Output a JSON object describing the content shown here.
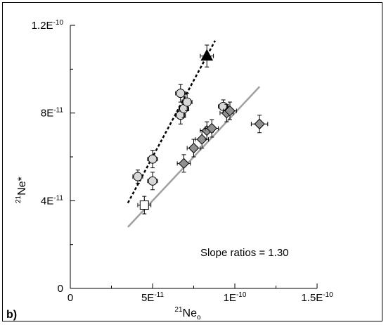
{
  "chart_data": {
    "type": "scatter",
    "panel_label": "b)",
    "xlabel": {
      "sup": "21",
      "base": "Ne",
      "sub": "o"
    },
    "ylabel": {
      "sup": "21",
      "base": "Ne*"
    },
    "xlim": [
      0,
      1.5e-10
    ],
    "ylim": [
      0,
      1.2e-10
    ],
    "x_ticks": [
      {
        "value": 0,
        "mant": "0",
        "exp": ""
      },
      {
        "value": 5e-11,
        "mant": "5E",
        "exp": "-11"
      },
      {
        "value": 1e-10,
        "mant": "1E",
        "exp": "-10"
      },
      {
        "value": 1.5e-10,
        "mant": "1.5E",
        "exp": "-10"
      }
    ],
    "y_ticks": [
      {
        "value": 0,
        "mant": "0",
        "exp": ""
      },
      {
        "value": 4e-11,
        "mant": "4E",
        "exp": "-11"
      },
      {
        "value": 8e-11,
        "mant": "8E",
        "exp": "-11"
      },
      {
        "value": 1.2e-10,
        "mant": "1.2E",
        "exp": "-10"
      }
    ],
    "annotation": "Slope ratios = 1.30",
    "series": [
      {
        "marker": "circle",
        "fill": "#d8d8d8",
        "points": [
          {
            "x": 4.1e-11,
            "y": 5.1e-11,
            "xerr": 3e-12,
            "yerr": 3e-12
          },
          {
            "x": 5e-11,
            "y": 5.9e-11,
            "xerr": 3e-12,
            "yerr": 4e-12
          },
          {
            "x": 5e-11,
            "y": 4.9e-11,
            "xerr": 3e-12,
            "yerr": 4e-12
          },
          {
            "x": 6.7e-11,
            "y": 8.9e-11,
            "xerr": 3e-12,
            "yerr": 4e-12
          },
          {
            "x": 6.7e-11,
            "y": 7.9e-11,
            "xerr": 3e-12,
            "yerr": 4e-12
          },
          {
            "x": 6.9e-11,
            "y": 8.2e-11,
            "xerr": 3e-12,
            "yerr": 4e-12
          },
          {
            "x": 7.1e-11,
            "y": 8.5e-11,
            "xerr": 3e-12,
            "yerr": 4e-12
          },
          {
            "x": 9.3e-11,
            "y": 8.3e-11,
            "xerr": 3e-12,
            "yerr": 3e-12
          }
        ]
      },
      {
        "marker": "diamond",
        "fill": "#909090",
        "points": [
          {
            "x": 6.9e-11,
            "y": 5.7e-11,
            "xerr": 4e-12,
            "yerr": 4e-12
          },
          {
            "x": 7.5e-11,
            "y": 6.4e-11,
            "xerr": 4e-12,
            "yerr": 4e-12
          },
          {
            "x": 8e-11,
            "y": 6.8e-11,
            "xerr": 4e-12,
            "yerr": 4e-12
          },
          {
            "x": 8.3e-11,
            "y": 7.2e-11,
            "xerr": 4e-12,
            "yerr": 4e-12
          },
          {
            "x": 8.6e-11,
            "y": 7.3e-11,
            "xerr": 4e-12,
            "yerr": 4e-12
          },
          {
            "x": 9.5e-11,
            "y": 8e-11,
            "xerr": 4e-12,
            "yerr": 4e-12
          },
          {
            "x": 9.7e-11,
            "y": 8.1e-11,
            "xerr": 4e-12,
            "yerr": 4e-12
          },
          {
            "x": 1.15e-10,
            "y": 7.5e-11,
            "xerr": 5e-12,
            "yerr": 4e-12
          }
        ]
      },
      {
        "marker": "triangle",
        "fill": "#000000",
        "points": [
          {
            "x": 8.3e-11,
            "y": 1.06e-10,
            "xerr": 4e-12,
            "yerr": 5e-12
          }
        ]
      },
      {
        "marker": "square",
        "fill": "#ffffff",
        "points": [
          {
            "x": 4.5e-11,
            "y": 3.8e-11,
            "xerr": 4e-12,
            "yerr": 4e-12
          }
        ]
      }
    ],
    "lines": [
      {
        "style": "dotted",
        "color": "#000000",
        "x": [
          3.5e-11,
          8.8e-11
        ],
        "y": [
          3.9e-11,
          1.13e-10
        ]
      },
      {
        "style": "solid",
        "color": "#a0a0a0",
        "x": [
          3.5e-11,
          1.15e-10
        ],
        "y": [
          2.8e-11,
          9.2e-11
        ]
      }
    ]
  }
}
